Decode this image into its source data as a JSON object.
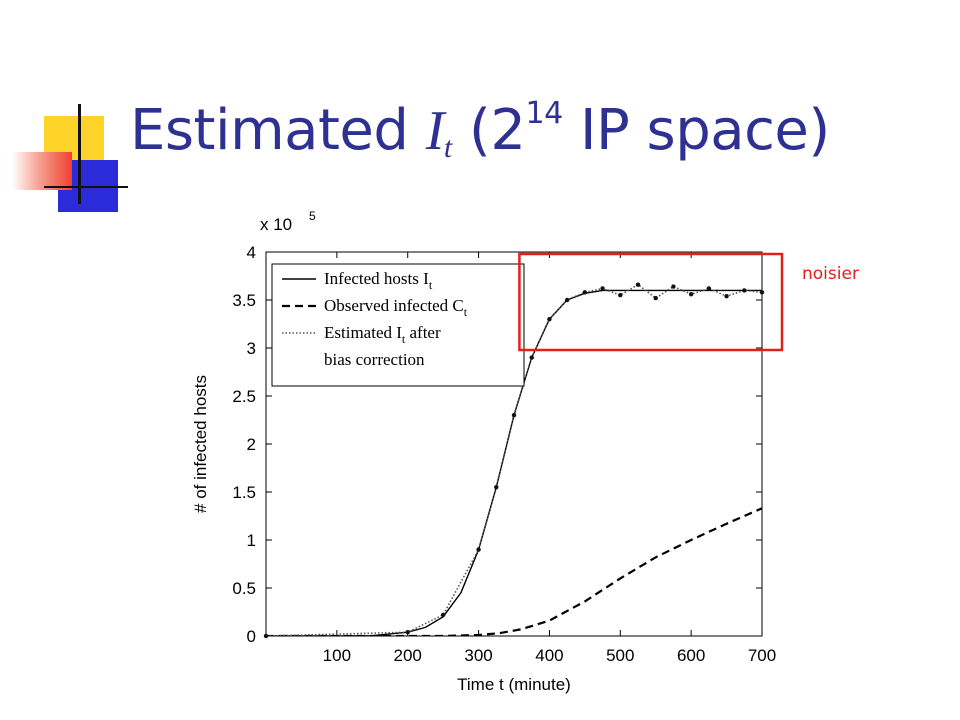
{
  "title": {
    "main": "Estimated ",
    "var": "I",
    "sub": "t",
    "open": " (2",
    "sup": "14",
    "close": " IP space)"
  },
  "annotation": {
    "text": "noisier",
    "color": "#e2201a"
  },
  "colors": {
    "title": "#2e3192",
    "highlight": "#e2201a",
    "deco_yellow": "#ffd42a",
    "deco_blue": "#2b2bd9",
    "deco_red": "#f0402f"
  },
  "chart_data": {
    "type": "line",
    "title": "",
    "xlabel": "Time t (minute)",
    "ylabel": "# of infected hosts",
    "y_multiplier_label": "x 10",
    "y_multiplier_exp": "5",
    "xlim": [
      0,
      700
    ],
    "ylim": [
      0,
      4
    ],
    "xticks": [
      100,
      200,
      300,
      400,
      500,
      600,
      700
    ],
    "yticks": [
      0,
      0.5,
      1,
      1.5,
      2,
      2.5,
      3,
      3.5,
      4
    ],
    "grid": false,
    "legend": {
      "position": "top-left",
      "entries": [
        {
          "text": "Infected hosts I",
          "sub": "t",
          "style": "solid"
        },
        {
          "text": "Observed infected C",
          "sub": "t",
          "style": "dashed"
        },
        {
          "text": "Estimated I",
          "sub": "t",
          "text2": " after",
          "style": "dotted"
        },
        {
          "text": "bias correction",
          "style": "none"
        }
      ]
    },
    "series": [
      {
        "name": "Infected hosts I_t",
        "style": "solid",
        "x": [
          0,
          100,
          150,
          200,
          225,
          250,
          275,
          300,
          325,
          350,
          375,
          400,
          425,
          450,
          475,
          500,
          550,
          600,
          650,
          700
        ],
        "y": [
          0,
          0,
          0.003,
          0.04,
          0.09,
          0.2,
          0.45,
          0.9,
          1.55,
          2.3,
          2.9,
          3.3,
          3.5,
          3.57,
          3.6,
          3.6,
          3.6,
          3.6,
          3.6,
          3.6
        ]
      },
      {
        "name": "Observed infected C_t",
        "style": "dashed",
        "x": [
          0,
          250,
          300,
          330,
          360,
          400,
          450,
          500,
          550,
          600,
          650,
          700
        ],
        "y": [
          0,
          0,
          0.01,
          0.03,
          0.07,
          0.16,
          0.36,
          0.6,
          0.82,
          1.0,
          1.17,
          1.33
        ]
      },
      {
        "name": "Estimated I_t after bias correction",
        "style": "dotted",
        "x": [
          0,
          200,
          250,
          300,
          325,
          350,
          375,
          400,
          425,
          450,
          475,
          500,
          525,
          550,
          575,
          600,
          625,
          650,
          675,
          700
        ],
        "y": [
          0,
          0.04,
          0.22,
          0.9,
          1.55,
          2.3,
          2.9,
          3.3,
          3.5,
          3.58,
          3.62,
          3.55,
          3.66,
          3.52,
          3.64,
          3.56,
          3.62,
          3.54,
          3.6,
          3.58
        ]
      }
    ],
    "highlight_box": {
      "x": [
        400,
        700
      ],
      "y": [
        3.0,
        4.0
      ],
      "label": "noisier"
    }
  }
}
